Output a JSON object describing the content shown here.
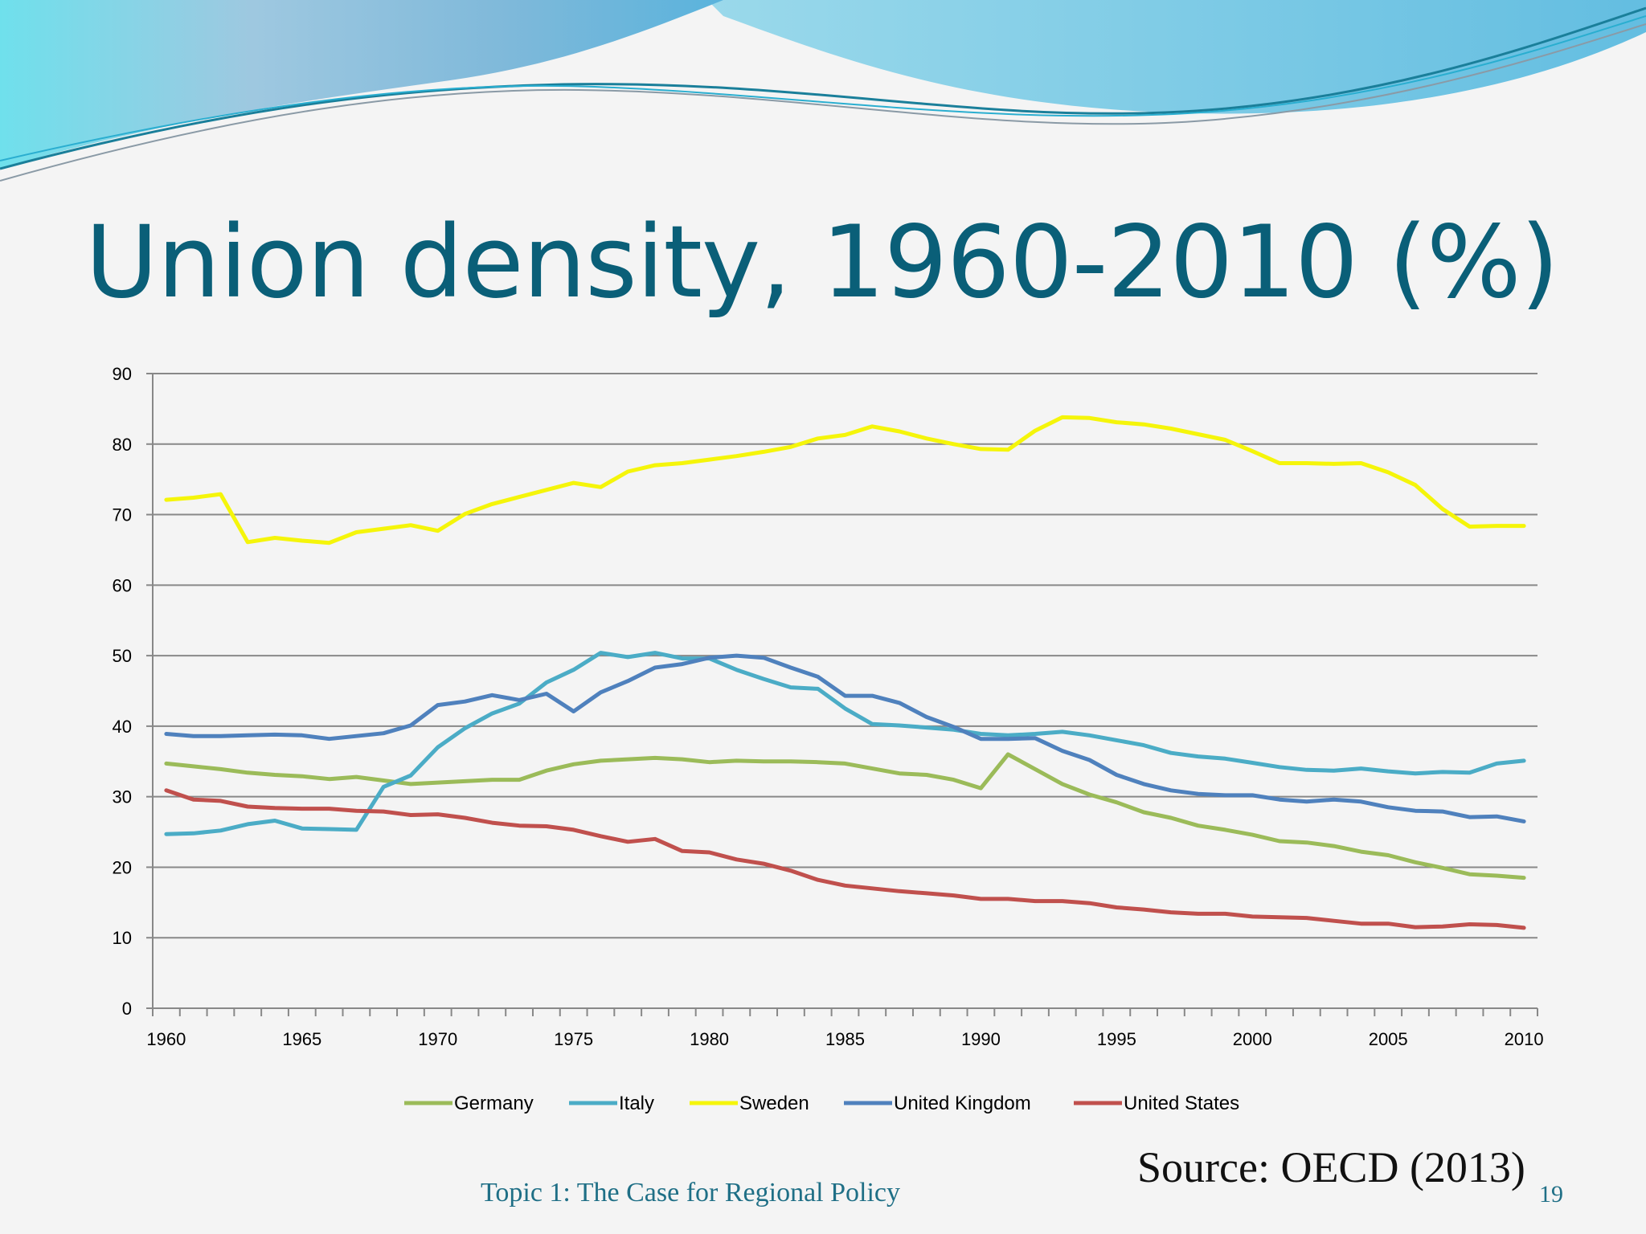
{
  "slide": {
    "title": "Union density, 1960-2010 (%)",
    "source": "Source: OECD (2013)",
    "footer": "Topic 1: The Case for Regional Policy",
    "page_number": "19"
  },
  "chart_data": {
    "type": "line",
    "title": "",
    "xlabel": "",
    "ylabel": "",
    "xlim": [
      1960,
      2010
    ],
    "ylim": [
      0,
      90
    ],
    "ytick_labels": [
      "0",
      "10",
      "20",
      "30",
      "40",
      "50",
      "60",
      "70",
      "80",
      "90"
    ],
    "xtick_labels": [
      "1960",
      "1965",
      "1970",
      "1975",
      "1980",
      "1985",
      "1990",
      "1995",
      "2000",
      "2005",
      "2010"
    ],
    "grid": "horizontal",
    "legend_position": "bottom",
    "x": [
      1960,
      1961,
      1962,
      1963,
      1964,
      1965,
      1966,
      1967,
      1968,
      1969,
      1970,
      1971,
      1972,
      1973,
      1974,
      1975,
      1976,
      1977,
      1978,
      1979,
      1980,
      1981,
      1982,
      1983,
      1984,
      1985,
      1986,
      1987,
      1988,
      1989,
      1990,
      1991,
      1992,
      1993,
      1994,
      1995,
      1996,
      1997,
      1998,
      1999,
      2000,
      2001,
      2002,
      2003,
      2004,
      2005,
      2006,
      2007,
      2008,
      2009,
      2010
    ],
    "series": [
      {
        "name": "Germany",
        "color": "#9bbb59",
        "values": [
          34.7,
          34.3,
          33.9,
          33.4,
          33.1,
          32.9,
          32.5,
          32.8,
          32.3,
          31.8,
          32.0,
          32.2,
          32.4,
          32.4,
          33.7,
          34.6,
          35.1,
          35.3,
          35.5,
          35.3,
          34.9,
          35.1,
          35.0,
          35.0,
          34.9,
          34.7,
          34.0,
          33.3,
          33.1,
          32.4,
          31.2,
          36.0,
          33.9,
          31.8,
          30.3,
          29.2,
          27.8,
          27.0,
          25.9,
          25.3,
          24.6,
          23.7,
          23.5,
          23.0,
          22.2,
          21.7,
          20.7,
          19.9,
          19.0,
          18.8,
          18.5
        ]
      },
      {
        "name": "Italy",
        "color": "#4bacc6",
        "values": [
          24.7,
          24.8,
          25.2,
          26.1,
          26.6,
          25.5,
          25.4,
          25.3,
          31.4,
          33.0,
          37.0,
          39.7,
          41.8,
          43.2,
          46.2,
          48.0,
          50.4,
          49.8,
          50.4,
          49.6,
          49.6,
          48.0,
          46.7,
          45.5,
          45.3,
          42.5,
          40.3,
          40.1,
          39.8,
          39.5,
          38.9,
          38.7,
          38.9,
          39.2,
          38.7,
          38.0,
          37.3,
          36.2,
          35.7,
          35.4,
          34.8,
          34.2,
          33.8,
          33.7,
          34.0,
          33.6,
          33.3,
          33.5,
          33.4,
          34.7,
          35.1
        ]
      },
      {
        "name": "Sweden",
        "color": "#f5f50a",
        "values": [
          72.1,
          72.4,
          72.9,
          66.1,
          66.7,
          66.3,
          66.0,
          67.5,
          68.0,
          68.5,
          67.7,
          70.1,
          71.5,
          72.5,
          73.5,
          74.5,
          73.9,
          76.1,
          77.0,
          77.3,
          77.8,
          78.3,
          78.9,
          79.6,
          80.8,
          81.3,
          82.5,
          81.8,
          80.8,
          80.0,
          79.3,
          79.2,
          81.9,
          83.8,
          83.7,
          83.1,
          82.8,
          82.2,
          81.4,
          80.6,
          79.0,
          77.3,
          77.3,
          77.2,
          77.3,
          76.0,
          74.2,
          70.8,
          68.3,
          68.4,
          68.4
        ]
      },
      {
        "name": "United Kingdom",
        "color": "#4f81bd",
        "values": [
          38.9,
          38.6,
          38.6,
          38.7,
          38.8,
          38.7,
          38.2,
          38.6,
          39.0,
          40.1,
          43.0,
          43.5,
          44.4,
          43.7,
          44.6,
          42.1,
          44.8,
          46.4,
          48.3,
          48.8,
          49.7,
          50.0,
          49.7,
          48.3,
          47.0,
          44.3,
          44.3,
          43.3,
          41.3,
          39.9,
          38.2,
          38.2,
          38.3,
          36.5,
          35.2,
          33.1,
          31.8,
          30.9,
          30.4,
          30.2,
          30.2,
          29.6,
          29.3,
          29.6,
          29.3,
          28.5,
          28.0,
          27.9,
          27.1,
          27.2,
          26.5
        ]
      },
      {
        "name": "United States",
        "color": "#c0504d",
        "values": [
          30.9,
          29.6,
          29.4,
          28.6,
          28.4,
          28.3,
          28.3,
          28.0,
          27.9,
          27.4,
          27.5,
          27.0,
          26.3,
          25.9,
          25.8,
          25.3,
          24.4,
          23.6,
          24.0,
          22.3,
          22.1,
          21.1,
          20.5,
          19.5,
          18.2,
          17.4,
          17.0,
          16.6,
          16.3,
          16.0,
          15.5,
          15.5,
          15.2,
          15.2,
          14.9,
          14.3,
          14.0,
          13.6,
          13.4,
          13.4,
          13.0,
          12.9,
          12.8,
          12.4,
          12.0,
          12.0,
          11.5,
          11.6,
          11.9,
          11.8,
          11.4
        ]
      }
    ]
  }
}
